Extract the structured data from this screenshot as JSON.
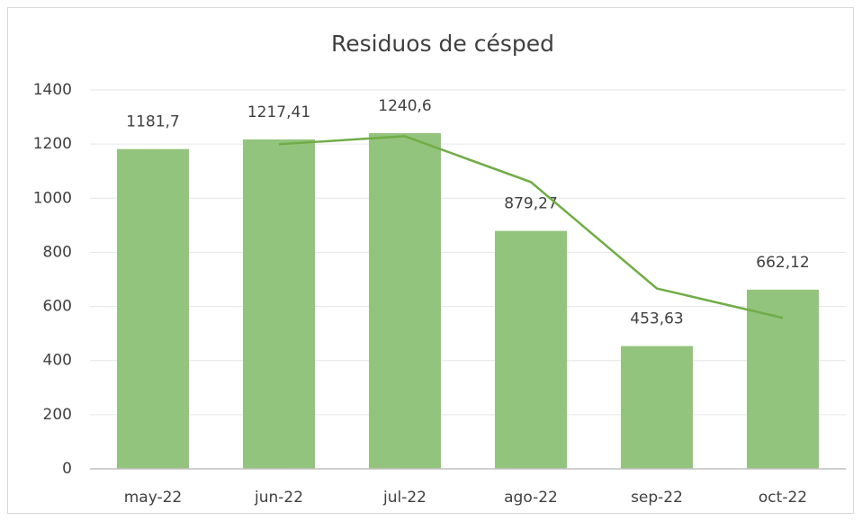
{
  "chart_data": {
    "type": "bar",
    "title": "Residuos de césped",
    "categories": [
      "may-22",
      "jun-22",
      "jul-22",
      "ago-22",
      "sep-22",
      "oct-22"
    ],
    "series": [
      {
        "type": "bar",
        "color": "#93c47d",
        "values": [
          1181.7,
          1217.41,
          1240.6,
          879.27,
          453.63,
          662.12
        ],
        "value_labels": [
          "1181,7",
          "1217,41",
          "1240,6",
          "879,27",
          "453,63",
          "662,12"
        ]
      },
      {
        "type": "line",
        "color": "#70ad47",
        "values": [
          null,
          1199.6,
          1229.0,
          1059.9,
          666.5,
          557.9
        ]
      }
    ],
    "ylim": [
      0,
      1400
    ],
    "yticks": [
      0,
      200,
      400,
      600,
      800,
      1000,
      1200,
      1400
    ],
    "grid": true
  }
}
